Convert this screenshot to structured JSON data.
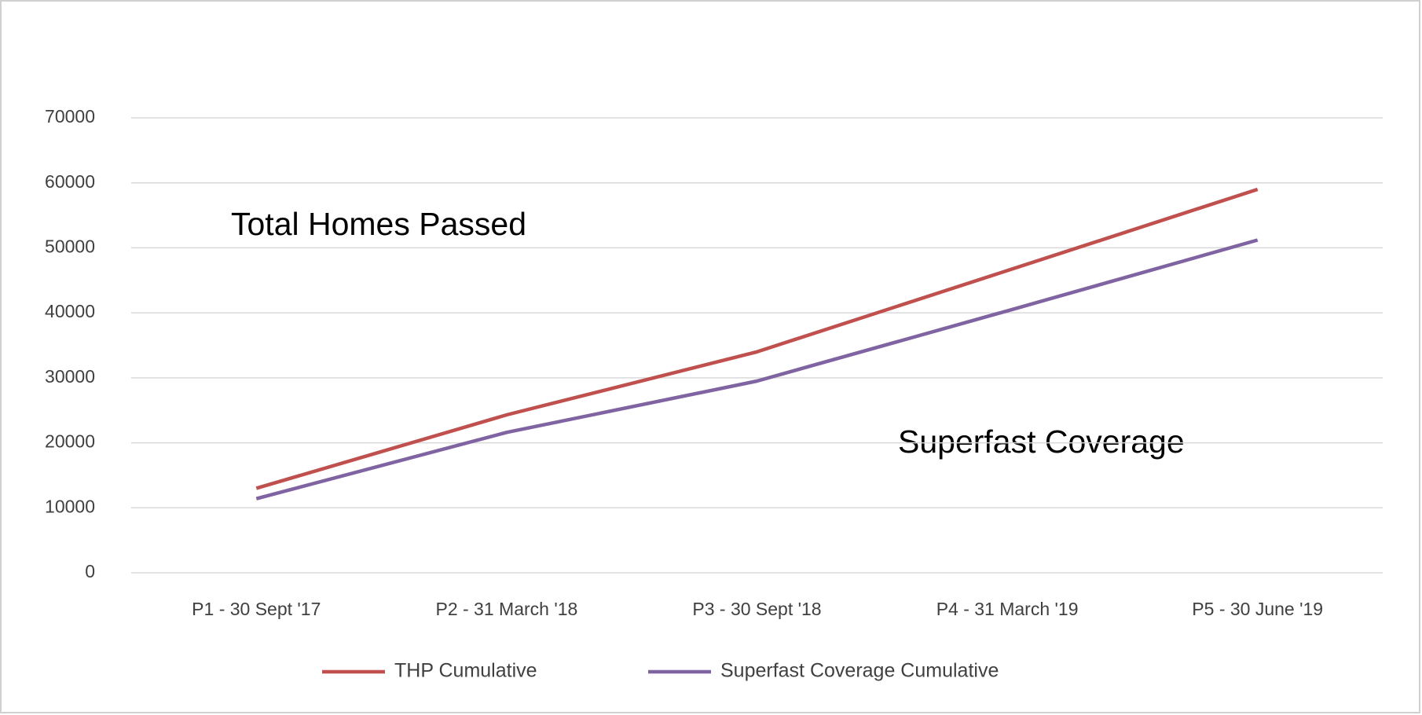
{
  "chart_data": {
    "type": "line",
    "categories": [
      "P1 - 30 Sept '17",
      "P2 - 31 March '18",
      "P3 - 30 Sept '18",
      "P4 - 31 March '19",
      "P5 - 30 June '19"
    ],
    "series": [
      {
        "name": "THP Cumulative",
        "color": "#c0504d",
        "values": [
          13000,
          24300,
          34000,
          46500,
          59000
        ]
      },
      {
        "name": "Superfast Coverage Cumulative",
        "color": "#8064a2",
        "values": [
          11400,
          21600,
          29500,
          40300,
          51200
        ]
      }
    ],
    "annotations": [
      "Total Homes Passed",
      "Superfast Coverage"
    ],
    "ylim": [
      0,
      70000
    ],
    "yticks": [
      0,
      10000,
      20000,
      30000,
      40000,
      50000,
      60000,
      70000
    ],
    "grid": true,
    "legend": "bottom"
  }
}
